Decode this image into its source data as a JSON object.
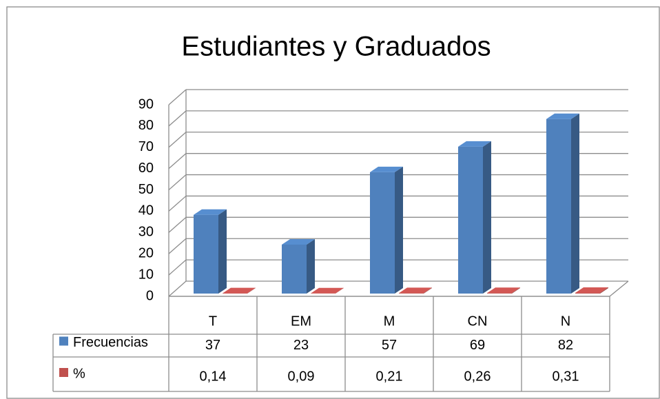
{
  "chart_data": {
    "type": "bar3d",
    "title": "Estudiantes y Graduados",
    "categories": [
      "T",
      "EM",
      "M",
      "CN",
      "N"
    ],
    "series": [
      {
        "name": "Frecuencias",
        "color": "#4f81bd",
        "values": [
          37,
          23,
          57,
          69,
          82
        ]
      },
      {
        "name": "%",
        "color": "#c0504d",
        "values": [
          0.14,
          0.09,
          0.21,
          0.26,
          0.31
        ],
        "value_labels": [
          "0,14",
          "0,09",
          "0,21",
          "0,26",
          "0,31"
        ]
      }
    ],
    "ylim": [
      0,
      90
    ],
    "yticks": [
      0,
      10,
      20,
      30,
      40,
      50,
      60,
      70,
      80,
      90
    ],
    "grid": true,
    "data_table": true
  }
}
